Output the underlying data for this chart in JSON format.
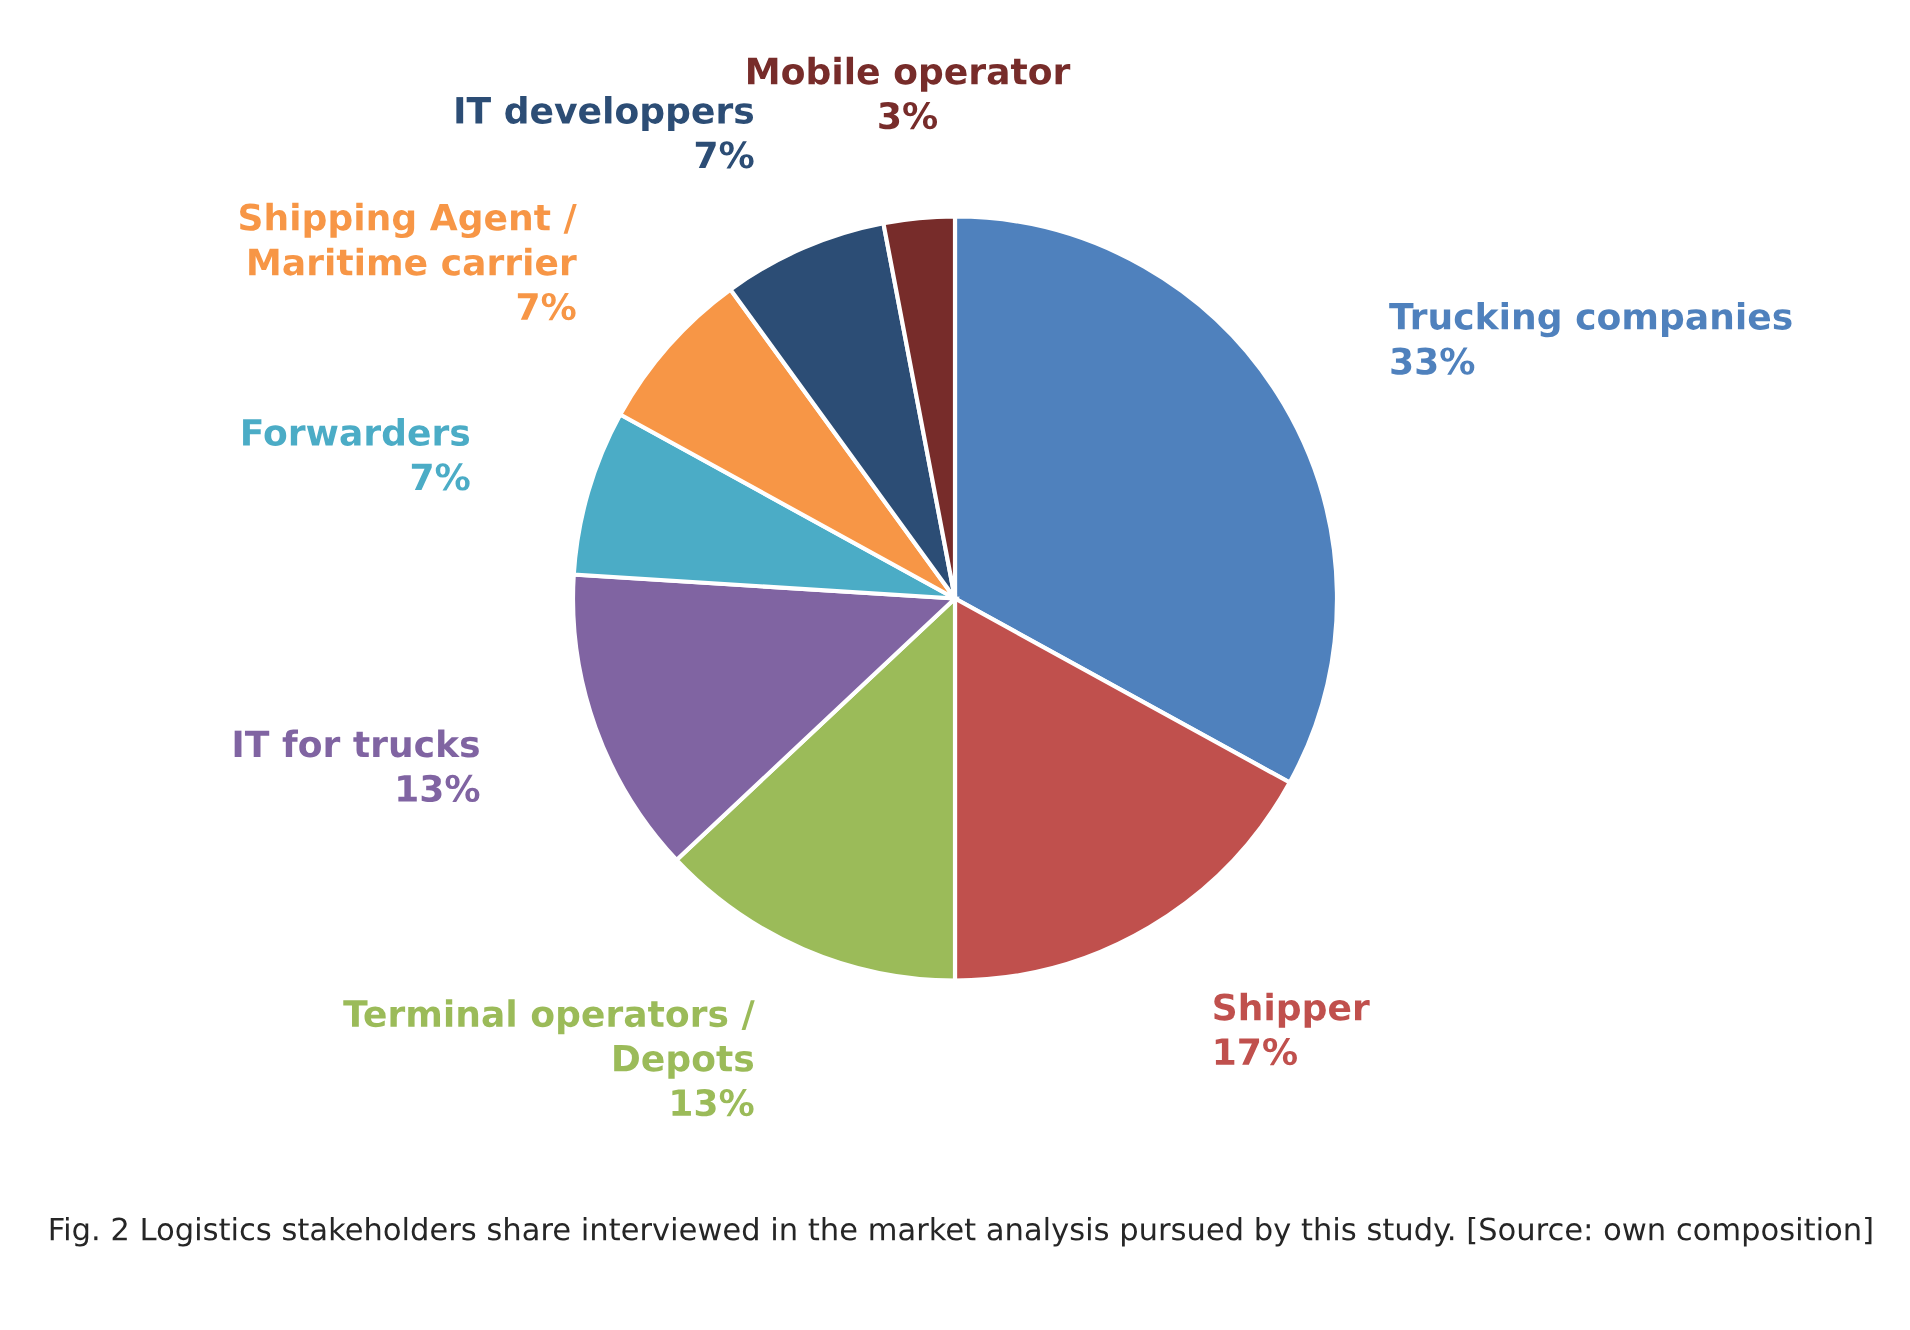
{
  "chart_data": {
    "type": "pie",
    "categories": [
      "Trucking companies",
      "Shipper",
      "Terminal operators / Depots",
      "IT for trucks",
      "Forwarders",
      "Shipping Agent / Maritime carrier",
      "IT developpers",
      "Mobile operator"
    ],
    "values": [
      33,
      17,
      13,
      13,
      7,
      7,
      7,
      3
    ],
    "value_labels": [
      "33%",
      "17%",
      "13%",
      "13%",
      "7%",
      "7%",
      "7%",
      "3%"
    ],
    "colors": [
      "#4f81bd",
      "#c0504d",
      "#9bbb59",
      "#8064a2",
      "#4bacc6",
      "#f79646",
      "#2c4d75",
      "#772c2a"
    ],
    "legend": false,
    "annotations": [
      "Fig. 2 Logistics stakeholders share interviewed in the market analysis pursued by this study. [Source: own composition]"
    ]
  }
}
